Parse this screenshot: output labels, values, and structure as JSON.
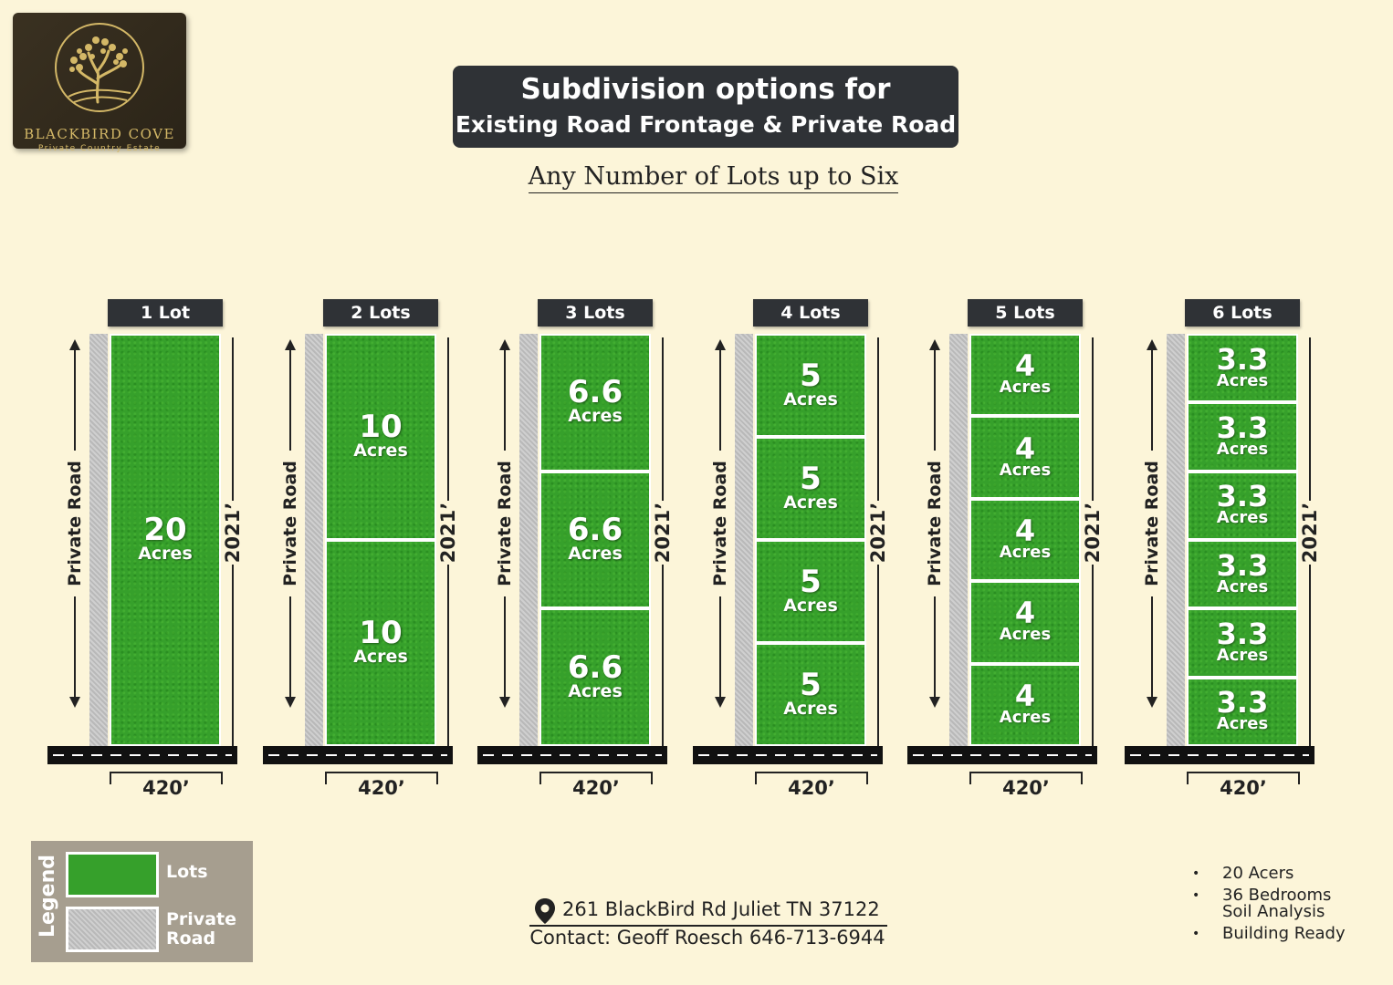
{
  "logo": {
    "name": "BLACKBIRD COVE",
    "tagline": "Private Country Estate",
    "icon": "tree-icon",
    "colors": {
      "background": "#2e2719",
      "gold": "#d4b867"
    }
  },
  "title": {
    "line1": "Subdivision options for",
    "line2": "Existing Road Frontage & Private Road"
  },
  "subtitle": "Any Number of Lots up to Six",
  "road_label": "Private Road",
  "length_label": "2021’",
  "frontage_label": "420’",
  "options": [
    {
      "label": "1 Lot",
      "lots": [
        {
          "value": "20",
          "unit": "Acres"
        }
      ]
    },
    {
      "label": "2 Lots",
      "lots": [
        {
          "value": "10",
          "unit": "Acres"
        },
        {
          "value": "10",
          "unit": "Acres"
        }
      ]
    },
    {
      "label": "3 Lots",
      "lots": [
        {
          "value": "6.6",
          "unit": "Acres"
        },
        {
          "value": "6.6",
          "unit": "Acres"
        },
        {
          "value": "6.6",
          "unit": "Acres"
        }
      ]
    },
    {
      "label": "4 Lots",
      "lots": [
        {
          "value": "5",
          "unit": "Acres"
        },
        {
          "value": "5",
          "unit": "Acres"
        },
        {
          "value": "5",
          "unit": "Acres"
        },
        {
          "value": "5",
          "unit": "Acres"
        }
      ]
    },
    {
      "label": "5 Lots",
      "lots": [
        {
          "value": "4",
          "unit": "Acres"
        },
        {
          "value": "4",
          "unit": "Acres"
        },
        {
          "value": "4",
          "unit": "Acres"
        },
        {
          "value": "4",
          "unit": "Acres"
        },
        {
          "value": "4",
          "unit": "Acres"
        }
      ]
    },
    {
      "label": "6 Lots",
      "lots": [
        {
          "value": "3.3",
          "unit": "Acres"
        },
        {
          "value": "3.3",
          "unit": "Acres"
        },
        {
          "value": "3.3",
          "unit": "Acres"
        },
        {
          "value": "3.3",
          "unit": "Acres"
        },
        {
          "value": "3.3",
          "unit": "Acres"
        },
        {
          "value": "3.3",
          "unit": "Acres"
        }
      ]
    }
  ],
  "legend": {
    "title": "Legend",
    "lots_label": "Lots",
    "road_label_line1": "Private",
    "road_label_line2": "Road",
    "colors": {
      "lots": "#36a02b",
      "road": "#c4c4c4",
      "panel": "#a69e8f"
    }
  },
  "contact": {
    "address": "261 BlackBird Rd Juliet TN 37122",
    "address_icon": "map-pin-icon",
    "line": "Contact: Geoff Roesch 646-713-6944"
  },
  "features": [
    {
      "bullet": "•",
      "text": "20 Acers"
    },
    {
      "bullet": "•",
      "text": "36 Bedrooms"
    },
    {
      "bullet": "",
      "text": "Soil Analysis"
    },
    {
      "bullet": "•",
      "text": "Building Ready"
    }
  ],
  "colors": {
    "background": "#fcf5d9",
    "dark_label": "#2f3236",
    "grass": "#36a02b"
  }
}
